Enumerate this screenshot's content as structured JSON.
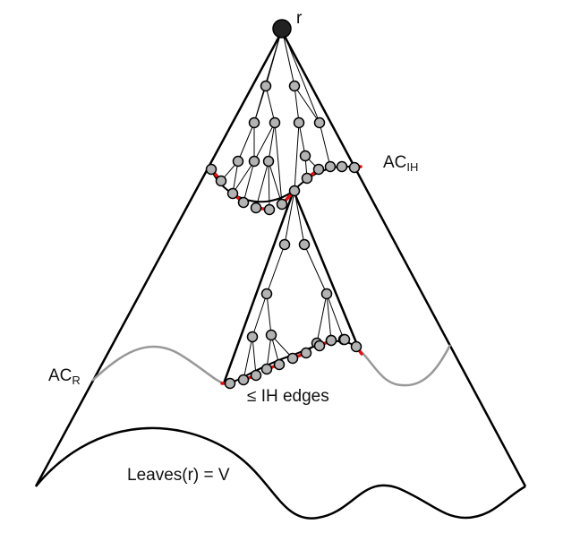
{
  "diagram": {
    "labels": {
      "root": "r",
      "ac_ih": "AC",
      "ac_ih_sub": "IH",
      "ac_r": "AC",
      "ac_r_sub": "R",
      "ih_edges": "≤ IH edges",
      "leaves": "Leaves(r) = V"
    },
    "colors": {
      "outline": "#000000",
      "node_fill": "#b3b3b3",
      "root_fill": "#222222",
      "cut_edge": "#dd1111",
      "ac_r_curve": "#999999"
    }
  }
}
